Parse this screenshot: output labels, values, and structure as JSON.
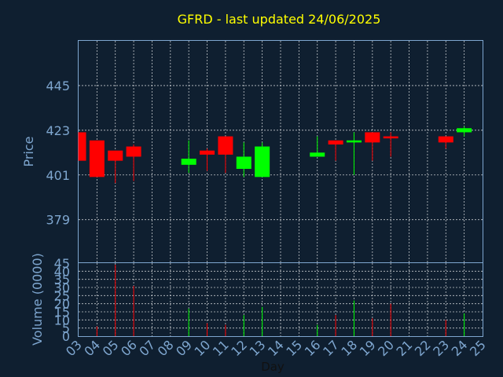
{
  "chart_data": {
    "type": "candlestick",
    "title": "GFRD - last updated 24/06/2025",
    "xlabel": "Day",
    "price_panel": {
      "ylabel": "Price",
      "yticks": [
        379,
        401,
        423,
        445
      ],
      "ylim": [
        358,
        467
      ]
    },
    "volume_panel": {
      "ylabel": "Volume (0000)",
      "yticks": [
        0,
        5,
        10,
        15,
        20,
        25,
        30,
        35,
        40,
        45
      ],
      "ylim": [
        0,
        45
      ]
    },
    "x_ticks": [
      "03",
      "04",
      "05",
      "06",
      "07",
      "08",
      "09",
      "10",
      "11",
      "12",
      "13",
      "14",
      "15",
      "16",
      "17",
      "18",
      "19",
      "20",
      "21",
      "22",
      "23",
      "24",
      "25"
    ],
    "grid": true,
    "colors": {
      "up": "#00ff00",
      "down": "#ff0000",
      "title": "#ffff00",
      "axis": "#7ea6cf",
      "background": "#0f1f30"
    },
    "candles": [
      {
        "day": "03",
        "open": 422,
        "high": 422,
        "low": 408,
        "close": 408,
        "volume": 0
      },
      {
        "day": "04",
        "open": 418,
        "high": 418,
        "low": 400,
        "close": 400,
        "volume": 6
      },
      {
        "day": "05",
        "open": 413,
        "high": 413,
        "low": 397,
        "close": 408,
        "volume": 44
      },
      {
        "day": "06",
        "open": 415,
        "high": 416,
        "low": 398,
        "close": 410,
        "volume": 31
      },
      {
        "day": "09",
        "open": 406,
        "high": 418,
        "low": 402,
        "close": 409,
        "volume": 17
      },
      {
        "day": "10",
        "open": 413,
        "high": 414,
        "low": 403,
        "close": 411,
        "volume": 8
      },
      {
        "day": "11",
        "open": 420,
        "high": 420,
        "low": 402,
        "close": 411,
        "volume": 7
      },
      {
        "day": "12",
        "open": 404,
        "high": 417,
        "low": 400,
        "close": 410,
        "volume": 13
      },
      {
        "day": "13",
        "open": 400,
        "high": 417,
        "low": 400,
        "close": 415,
        "volume": 18
      },
      {
        "day": "16",
        "open": 410,
        "high": 420,
        "low": 410,
        "close": 412,
        "volume": 7
      },
      {
        "day": "17",
        "open": 418,
        "high": 418,
        "low": 408,
        "close": 416,
        "volume": 13
      },
      {
        "day": "18",
        "open": 417,
        "high": 422,
        "low": 401,
        "close": 418,
        "volume": 22
      },
      {
        "day": "19",
        "open": 422,
        "high": 422,
        "low": 408,
        "close": 417,
        "volume": 11
      },
      {
        "day": "20",
        "open": 420,
        "high": 422,
        "low": 410,
        "close": 419,
        "volume": 20
      },
      {
        "day": "23",
        "open": 420,
        "high": 420,
        "low": 414,
        "close": 417,
        "volume": 10
      },
      {
        "day": "24",
        "open": 422,
        "high": 425,
        "low": 420,
        "close": 424,
        "volume": 14
      }
    ]
  }
}
